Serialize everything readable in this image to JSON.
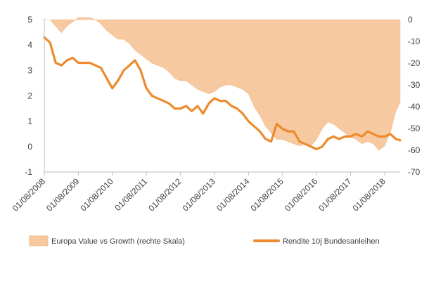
{
  "chart_data": {
    "type": "area+line",
    "x": [
      "2008-08-01",
      "2008-10-01",
      "2008-12-01",
      "2009-02-01",
      "2009-04-01",
      "2009-06-01",
      "2009-08-01",
      "2009-10-01",
      "2009-12-01",
      "2010-02-01",
      "2010-04-01",
      "2010-06-01",
      "2010-08-01",
      "2010-10-01",
      "2010-12-01",
      "2011-02-01",
      "2011-04-01",
      "2011-06-01",
      "2011-08-01",
      "2011-10-01",
      "2011-12-01",
      "2012-02-01",
      "2012-04-01",
      "2012-06-01",
      "2012-08-01",
      "2012-10-01",
      "2012-12-01",
      "2013-02-01",
      "2013-04-01",
      "2013-06-01",
      "2013-08-01",
      "2013-10-01",
      "2013-12-01",
      "2014-02-01",
      "2014-04-01",
      "2014-06-01",
      "2014-08-01",
      "2014-10-01",
      "2014-12-01",
      "2015-02-01",
      "2015-04-01",
      "2015-06-01",
      "2015-08-01",
      "2015-10-01",
      "2015-12-01",
      "2016-02-01",
      "2016-04-01",
      "2016-06-01",
      "2016-08-01",
      "2016-10-01",
      "2016-12-01",
      "2017-02-01",
      "2017-04-01",
      "2017-06-01",
      "2017-08-01",
      "2017-10-01",
      "2017-12-01",
      "2018-02-01",
      "2018-04-01",
      "2018-06-01",
      "2018-08-01",
      "2018-10-01",
      "2018-12-01",
      "2019-01-15"
    ],
    "series": [
      {
        "name": "Europa Value vs Growth (rechte Skala)",
        "type": "area",
        "axis": "right",
        "color": "#f7c9a0",
        "values": [
          0,
          0,
          -3,
          -6,
          -3,
          -1,
          1,
          1,
          1,
          0,
          -2,
          -5,
          -7,
          -9,
          -9,
          -11,
          -14,
          -16,
          -18,
          -20,
          -21,
          -22,
          -24,
          -27,
          -28,
          -28,
          -30,
          -32,
          -33,
          -34,
          -33,
          -31,
          -30,
          -30,
          -31,
          -32,
          -34,
          -40,
          -44,
          -49,
          -52,
          -55,
          -55,
          -56,
          -57,
          -58,
          -57,
          -58,
          -55,
          -50,
          -47,
          -48,
          -50,
          -52,
          -54,
          -55,
          -57,
          -56,
          -57,
          -60,
          -58,
          -52,
          -42,
          -38
        ]
      },
      {
        "name": "Rendite 10j Bundesanleihen",
        "type": "line",
        "axis": "left",
        "color": "#ee8a2e",
        "values": [
          4.3,
          4.1,
          3.3,
          3.2,
          3.4,
          3.5,
          3.3,
          3.3,
          3.3,
          3.2,
          3.1,
          2.7,
          2.3,
          2.6,
          3.0,
          3.2,
          3.4,
          3.0,
          2.3,
          2.0,
          1.9,
          1.8,
          1.7,
          1.5,
          1.5,
          1.6,
          1.4,
          1.6,
          1.3,
          1.7,
          1.9,
          1.8,
          1.8,
          1.6,
          1.5,
          1.3,
          1.0,
          0.8,
          0.6,
          0.3,
          0.2,
          0.9,
          0.7,
          0.6,
          0.6,
          0.2,
          0.1,
          0.0,
          -0.1,
          0.0,
          0.3,
          0.4,
          0.3,
          0.4,
          0.4,
          0.5,
          0.4,
          0.6,
          0.5,
          0.4,
          0.4,
          0.5,
          0.3,
          0.25
        ]
      }
    ],
    "left_axis": {
      "ticks": [
        "5",
        "4",
        "3",
        "2",
        "1",
        "0",
        "-1"
      ],
      "ylim": [
        -1,
        5
      ]
    },
    "right_axis": {
      "ticks": [
        "0",
        "-10",
        "-20",
        "-30",
        "-40",
        "-50",
        "-60",
        "-70"
      ],
      "ylim": [
        -70,
        0
      ]
    },
    "x_ticks": [
      "01/08/2008",
      "01/08/2009",
      "01/08/2010",
      "01/08/2011",
      "01/08/2012",
      "01/08/2013",
      "01/08/2014",
      "01/08/2015",
      "01/08/2016",
      "01/08/2017",
      "01/08/2018"
    ],
    "legend": [
      {
        "label": "Europa Value vs Growth (rechte Skala)",
        "marker": "area",
        "color": "#f7c9a0"
      },
      {
        "label": "Rendite 10j Bundesanleihen",
        "marker": "line",
        "color": "#ee8a2e"
      }
    ],
    "grid": false,
    "legend_position": "bottom"
  }
}
